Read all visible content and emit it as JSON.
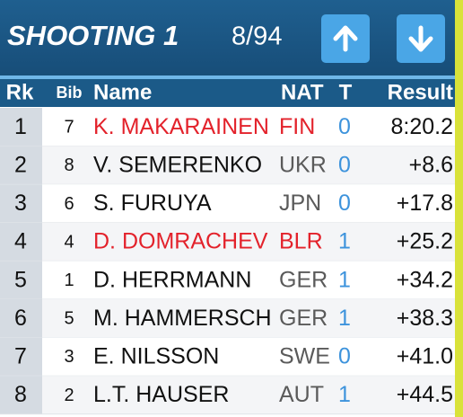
{
  "header": {
    "title": "SHOOTING 1",
    "progress": "8/94"
  },
  "table": {
    "columns": [
      "Rk",
      "Bib",
      "Name",
      "NAT",
      "T",
      "Result"
    ],
    "rows": [
      {
        "cells": [
          "1",
          "7",
          "K. MAKARAINEN",
          "FIN",
          "0",
          "8:20.2"
        ],
        "highlight": true
      },
      {
        "cells": [
          "2",
          "8",
          "V. SEMERENKO",
          "UKR",
          "0",
          "+8.6"
        ],
        "highlight": false
      },
      {
        "cells": [
          "3",
          "6",
          "S. FURUYA",
          "JPN",
          "0",
          "+17.8"
        ],
        "highlight": false
      },
      {
        "cells": [
          "4",
          "4",
          "D. DOMRACHEV",
          "BLR",
          "1",
          "+25.2"
        ],
        "highlight": true
      },
      {
        "cells": [
          "5",
          "1",
          "D. HERRMANN",
          "GER",
          "1",
          "+34.2"
        ],
        "highlight": false
      },
      {
        "cells": [
          "6",
          "5",
          "M. HAMMERSCH",
          "GER",
          "1",
          "+38.3"
        ],
        "highlight": false
      },
      {
        "cells": [
          "7",
          "3",
          "E. NILSSON",
          "SWE",
          "0",
          "+41.0"
        ],
        "highlight": false
      },
      {
        "cells": [
          "8",
          "2",
          "L.T. HAUSER",
          "AUT",
          "1",
          "+44.5"
        ],
        "highlight": false
      }
    ]
  }
}
